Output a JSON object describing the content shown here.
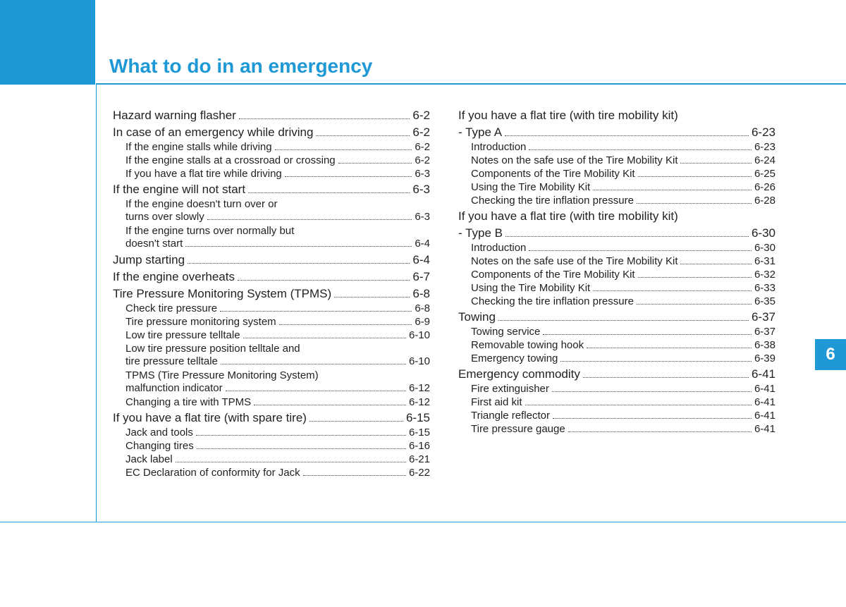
{
  "chapter": {
    "title": "What to do in an emergency",
    "number": "6",
    "accent_color": "#1e99d6"
  },
  "toc": {
    "left": [
      {
        "type": "main",
        "label": "Hazard warning flasher",
        "page": "6-2"
      },
      {
        "type": "main",
        "label": "In case of an emergency while driving",
        "page": "6-2"
      },
      {
        "type": "sub",
        "label": "If the engine stalls while driving",
        "page": "6-2"
      },
      {
        "type": "sub",
        "label": "If the engine stalls at a crossroad or crossing",
        "page": "6-2"
      },
      {
        "type": "sub",
        "label": "If you have a flat tire while driving",
        "page": "6-3"
      },
      {
        "type": "main",
        "label": "If the engine will not start",
        "page": "6-3"
      },
      {
        "type": "wrap",
        "line1": "If the engine doesn't turn over or",
        "line2": "turns over slowly",
        "page": "6-3"
      },
      {
        "type": "wrap",
        "line1": "If the engine turns over normally but",
        "line2": "doesn't start",
        "page": "6-4"
      },
      {
        "type": "main",
        "label": "Jump starting",
        "page": "6-4"
      },
      {
        "type": "main",
        "label": "If the engine overheats",
        "page": "6-7"
      },
      {
        "type": "main",
        "label": "Tire Pressure Monitoring System (TPMS)",
        "page": "6-8"
      },
      {
        "type": "sub",
        "label": "Check tire pressure",
        "page": "6-8"
      },
      {
        "type": "sub",
        "label": "Tire pressure monitoring system",
        "page": "6-9"
      },
      {
        "type": "sub",
        "label": "Low tire pressure telltale",
        "page": "6-10"
      },
      {
        "type": "wrap",
        "line1": "Low tire pressure position telltale and",
        "line2": "tire pressure telltale",
        "page": "6-10"
      },
      {
        "type": "wrap",
        "line1": "TPMS (Tire Pressure Monitoring System)",
        "line2": "malfunction indicator",
        "page": "6-12"
      },
      {
        "type": "sub",
        "label": "Changing a tire with TPMS",
        "page": "6-12"
      },
      {
        "type": "main",
        "label": "If you have a flat tire (with spare tire)",
        "page": "6-15"
      },
      {
        "type": "sub",
        "label": "Jack and tools",
        "page": "6-15"
      },
      {
        "type": "sub",
        "label": "Changing tires",
        "page": "6-16"
      },
      {
        "type": "sub",
        "label": "Jack label",
        "page": "6-21"
      },
      {
        "type": "sub",
        "label": "EC Declaration of conformity for Jack",
        "page": "6-22"
      }
    ],
    "right": [
      {
        "type": "main-nop",
        "label": "If you have a flat tire (with tire mobility kit)"
      },
      {
        "type": "main",
        "label": "- Type A",
        "page": "6-23"
      },
      {
        "type": "sub",
        "label": "Introduction",
        "page": "6-23"
      },
      {
        "type": "sub",
        "label": "Notes on the safe use of the Tire Mobility Kit",
        "page": "6-24"
      },
      {
        "type": "sub",
        "label": "Components of the Tire Mobility Kit",
        "page": "6-25"
      },
      {
        "type": "sub",
        "label": "Using the Tire Mobility Kit",
        "page": "6-26"
      },
      {
        "type": "sub",
        "label": "Checking the tire inflation pressure",
        "page": "6-28"
      },
      {
        "type": "main-nop",
        "label": "If you have a flat tire (with tire mobility kit)"
      },
      {
        "type": "main",
        "label": "- Type B",
        "page": "6-30"
      },
      {
        "type": "sub",
        "label": "Introduction",
        "page": "6-30"
      },
      {
        "type": "sub",
        "label": "Notes on the safe use of the Tire Mobility Kit",
        "page": "6-31"
      },
      {
        "type": "sub",
        "label": "Components of the Tire Mobility Kit",
        "page": "6-32"
      },
      {
        "type": "sub",
        "label": "Using the Tire Mobility Kit",
        "page": "6-33"
      },
      {
        "type": "sub",
        "label": "Checking the tire inflation pressure",
        "page": "6-35"
      },
      {
        "type": "main",
        "label": "Towing",
        "page": "6-37"
      },
      {
        "type": "sub",
        "label": "Towing service",
        "page": "6-37"
      },
      {
        "type": "sub",
        "label": "Removable towing hook",
        "page": "6-38"
      },
      {
        "type": "sub",
        "label": "Emergency towing",
        "page": "6-39"
      },
      {
        "type": "main",
        "label": "Emergency commodity",
        "page": "6-41"
      },
      {
        "type": "sub",
        "label": "Fire extinguisher",
        "page": "6-41"
      },
      {
        "type": "sub",
        "label": "First aid kit",
        "page": "6-41"
      },
      {
        "type": "sub",
        "label": "Triangle reflector",
        "page": "6-41"
      },
      {
        "type": "sub",
        "label": "Tire pressure gauge",
        "page": "6-41"
      }
    ]
  }
}
